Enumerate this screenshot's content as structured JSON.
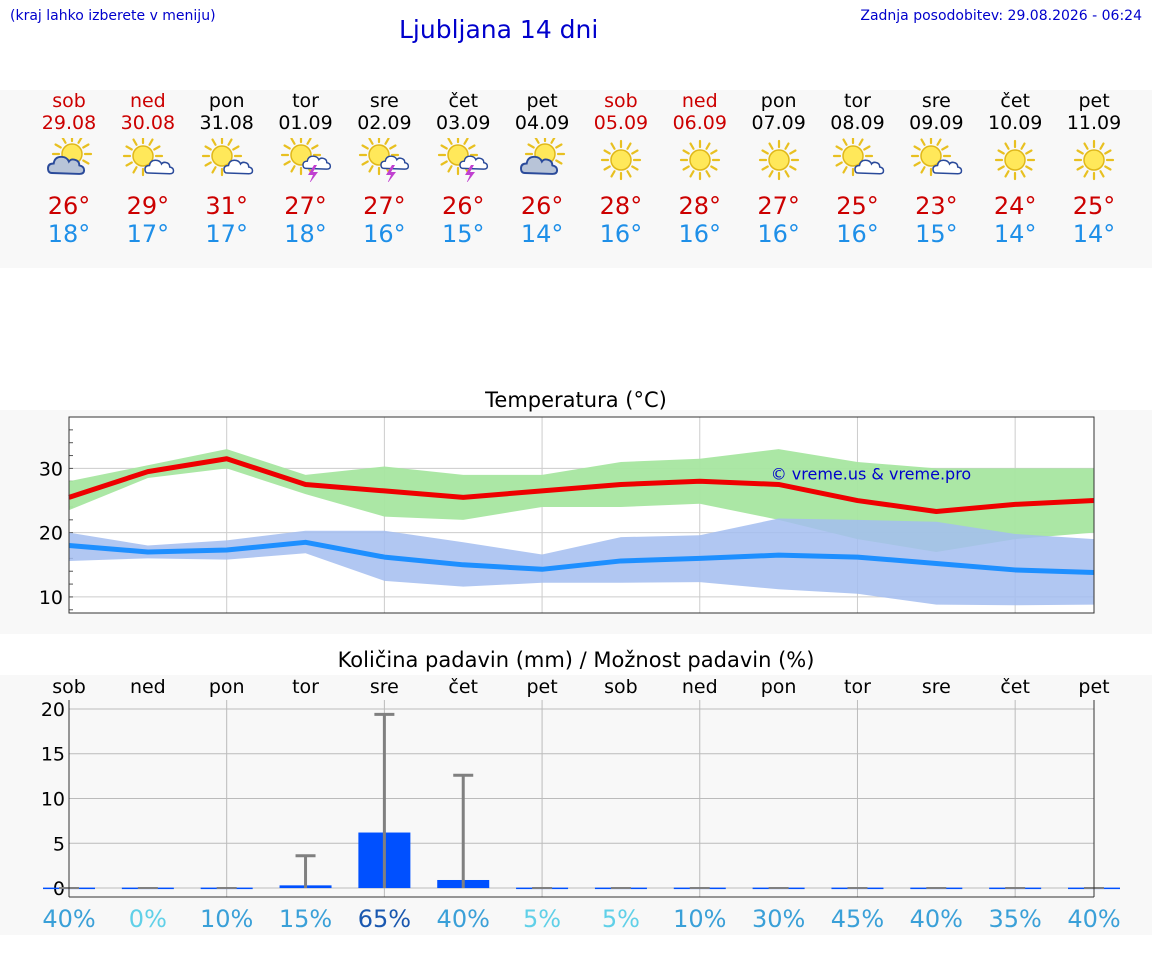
{
  "header": {
    "left_note": "(kraj lahko izberete v meniju)",
    "title": "Ljubljana 14 dni",
    "updated": "Zadnja posodobitev: 29.08.2026 - 06:24"
  },
  "days": [
    {
      "name": "sob",
      "date": "29.08",
      "weekend": true,
      "icon": "sun-cloud-icon",
      "tmax": "26°",
      "tmin": "18°"
    },
    {
      "name": "ned",
      "date": "30.08",
      "weekend": true,
      "icon": "sun-small-cloud-icon",
      "tmax": "29°",
      "tmin": "17°"
    },
    {
      "name": "pon",
      "date": "31.08",
      "weekend": false,
      "icon": "sun-small-cloud-icon",
      "tmax": "31°",
      "tmin": "17°"
    },
    {
      "name": "tor",
      "date": "01.09",
      "weekend": false,
      "icon": "sun-cloud-thunder-icon",
      "tmax": "27°",
      "tmin": "18°"
    },
    {
      "name": "sre",
      "date": "02.09",
      "weekend": false,
      "icon": "sun-cloud-thunder-icon",
      "tmax": "27°",
      "tmin": "16°"
    },
    {
      "name": "čet",
      "date": "03.09",
      "weekend": false,
      "icon": "sun-cloud-thunder-icon",
      "tmax": "26°",
      "tmin": "15°"
    },
    {
      "name": "pet",
      "date": "04.09",
      "weekend": false,
      "icon": "sun-cloud-icon",
      "tmax": "26°",
      "tmin": "14°"
    },
    {
      "name": "sob",
      "date": "05.09",
      "weekend": true,
      "icon": "sun-icon",
      "tmax": "28°",
      "tmin": "16°"
    },
    {
      "name": "ned",
      "date": "06.09",
      "weekend": true,
      "icon": "sun-icon",
      "tmax": "28°",
      "tmin": "16°"
    },
    {
      "name": "pon",
      "date": "07.09",
      "weekend": false,
      "icon": "sun-icon",
      "tmax": "27°",
      "tmin": "16°"
    },
    {
      "name": "tor",
      "date": "08.09",
      "weekend": false,
      "icon": "sun-small-cloud-icon",
      "tmax": "25°",
      "tmin": "16°"
    },
    {
      "name": "sre",
      "date": "09.09",
      "weekend": false,
      "icon": "sun-small-cloud-icon",
      "tmax": "23°",
      "tmin": "15°"
    },
    {
      "name": "čet",
      "date": "10.09",
      "weekend": false,
      "icon": "sun-icon",
      "tmax": "24°",
      "tmin": "14°"
    },
    {
      "name": "pet",
      "date": "11.09",
      "weekend": false,
      "icon": "sun-icon",
      "tmax": "25°",
      "tmin": "14°"
    }
  ],
  "colors": {
    "weekend": "#cc0000",
    "max_line": "#ee0000",
    "max_band": "#a6e6a0",
    "min_line": "#1e8fff",
    "min_band": "#a3bdf0",
    "precip_bar": "#0050ff",
    "title_blue": "#0000cc"
  },
  "chart_data": [
    {
      "type": "line",
      "title": "Temperatura (°C)",
      "watermark": "© vreme.us & vreme.pro",
      "x": [
        "29.08",
        "30.08",
        "31.08",
        "01.09",
        "02.09",
        "03.09",
        "04.09",
        "05.09",
        "06.09",
        "07.09",
        "08.09",
        "09.09",
        "10.09",
        "11.09"
      ],
      "ylim": [
        7.5,
        38
      ],
      "yticks": [
        10,
        20,
        30
      ],
      "grid": true,
      "series": [
        {
          "role": "max",
          "values": [
            25.5,
            29.5,
            31.5,
            27.5,
            26.5,
            25.5,
            26.5,
            27.5,
            28,
            27.5,
            25,
            23.3,
            24.4,
            25
          ],
          "band_low": [
            23.5,
            28.5,
            30,
            26,
            22.5,
            22,
            24,
            24,
            24.5,
            22,
            19,
            17,
            19,
            20
          ],
          "band_high": [
            28,
            30.5,
            33,
            29,
            30.3,
            29,
            29,
            31,
            31.5,
            33,
            31,
            30,
            30,
            30
          ]
        },
        {
          "role": "min",
          "values": [
            18,
            17,
            17.3,
            18.5,
            16.2,
            15,
            14.3,
            15.6,
            16,
            16.5,
            16.2,
            15.2,
            14.2,
            13.8
          ],
          "band_low": [
            15.6,
            16,
            15.8,
            16.8,
            12.5,
            11.6,
            12.2,
            12.2,
            12.3,
            11.2,
            10.5,
            8.8,
            8.7,
            8.8
          ],
          "band_high": [
            20,
            18,
            18.8,
            20.3,
            20.3,
            18.5,
            16.6,
            19.3,
            19.6,
            22.2,
            22,
            21.7,
            19.8,
            19
          ]
        }
      ]
    },
    {
      "type": "bar",
      "title": "Količina padavin (mm) / Možnost padavin (%)",
      "categories": [
        "sob",
        "ned",
        "pon",
        "tor",
        "sre",
        "čet",
        "pet",
        "sob",
        "ned",
        "pon",
        "tor",
        "sre",
        "čet",
        "pet"
      ],
      "values": [
        0,
        0,
        0,
        0.3,
        6.2,
        0.9,
        0,
        0,
        0,
        0,
        0,
        0,
        0,
        0
      ],
      "max_values": [
        0,
        0,
        0,
        3.6,
        19.4,
        12.6,
        0,
        0,
        0,
        0,
        0,
        0,
        0,
        0
      ],
      "probability": [
        "40%",
        "0%",
        "10%",
        "15%",
        "65%",
        "40%",
        "5%",
        "5%",
        "10%",
        "30%",
        "45%",
        "40%",
        "35%",
        "40%"
      ],
      "probability_values": [
        40,
        0,
        10,
        15,
        65,
        40,
        5,
        5,
        10,
        30,
        45,
        40,
        35,
        40
      ],
      "ylim": [
        -1,
        21
      ],
      "yticks": [
        0,
        5,
        10,
        15,
        20
      ],
      "grid": true
    }
  ]
}
